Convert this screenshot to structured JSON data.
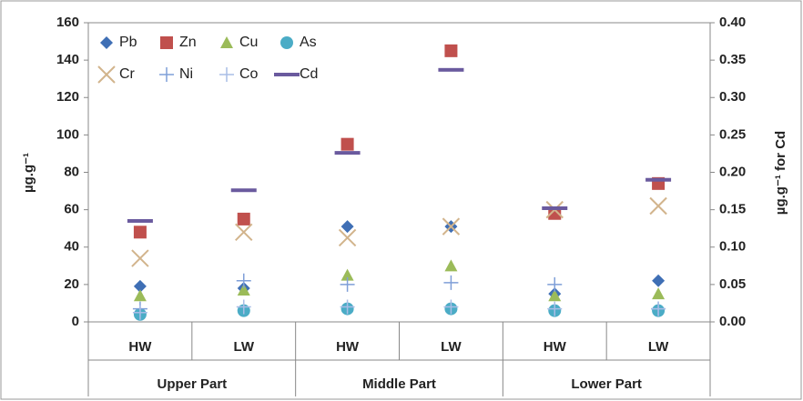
{
  "chart_data": {
    "type": "scatter",
    "categories": [
      "HW",
      "LW",
      "HW",
      "LW",
      "HW",
      "LW"
    ],
    "groups": [
      "Upper Part",
      "Middle Part",
      "Lower Part"
    ],
    "y_label": "µg.g⁻¹",
    "y2_label": "µg.g⁻¹ for Cd",
    "ylim": [
      0,
      160
    ],
    "yticks": [
      0,
      20,
      40,
      60,
      80,
      100,
      120,
      140,
      160
    ],
    "y2lim": [
      0,
      0.4
    ],
    "y2ticks": [
      {
        "value": 0,
        "label": "0.00"
      },
      {
        "value": 0.05,
        "label": "0.05"
      },
      {
        "value": 0.1,
        "label": "0.10"
      },
      {
        "value": 0.15,
        "label": "0.15"
      },
      {
        "value": 0.2,
        "label": "0.20"
      },
      {
        "value": 0.25,
        "label": "0.25"
      },
      {
        "value": 0.3,
        "label": "0.30"
      },
      {
        "value": 0.35,
        "label": "0.35"
      },
      {
        "value": 0.4,
        "label": "0.40"
      }
    ],
    "legend": "top-left",
    "series": [
      {
        "name": "Pb",
        "color": "#3f6fb5",
        "marker": "diamond",
        "values": [
          19,
          18,
          51,
          51,
          15,
          22
        ]
      },
      {
        "name": "Zn",
        "color": "#c0504d",
        "marker": "square",
        "values": [
          48,
          55,
          95,
          145,
          58,
          74
        ]
      },
      {
        "name": "Cu",
        "color": "#9bbb59",
        "marker": "triangle",
        "values": [
          14,
          17,
          25,
          30,
          14,
          15
        ]
      },
      {
        "name": "As",
        "color": "#4bacc6",
        "marker": "circle",
        "values": [
          4,
          6,
          7,
          7,
          6,
          6
        ]
      },
      {
        "name": "Cr",
        "color": "#d2b48c",
        "marker": "x",
        "values": [
          34,
          48,
          45,
          51,
          60,
          62
        ]
      },
      {
        "name": "Ni",
        "color": "#7f9fd8",
        "marker": "plus",
        "values": [
          7,
          22,
          20,
          21,
          20,
          7
        ]
      },
      {
        "name": "Co",
        "color": "#a9bde6",
        "marker": "plus",
        "values": [
          5,
          8,
          8,
          8,
          7,
          7
        ]
      },
      {
        "name": "Cd",
        "color": "#6a5a9e",
        "marker": "dash",
        "axis": "y2",
        "values": [
          0.135,
          0.176,
          0.226,
          0.337,
          0.152,
          0.19
        ]
      }
    ]
  }
}
